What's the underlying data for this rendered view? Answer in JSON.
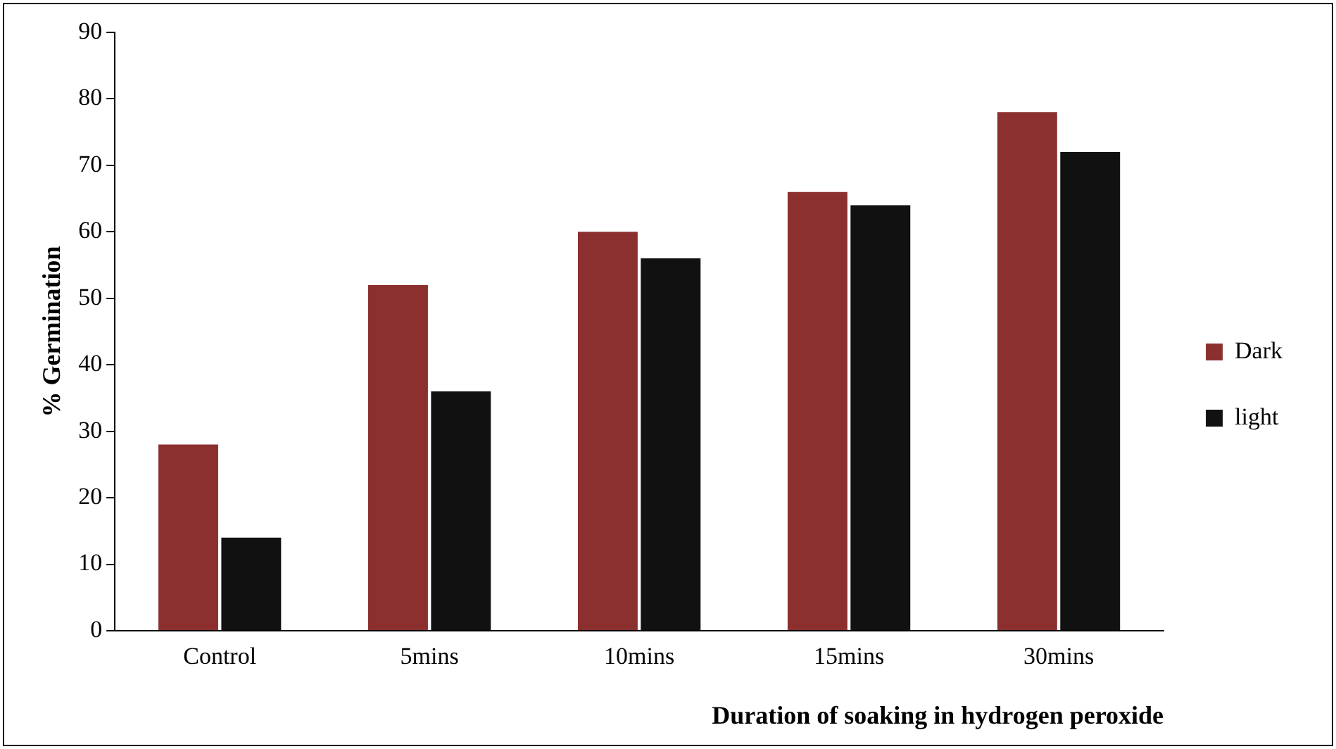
{
  "chart_data": {
    "type": "bar",
    "xlabel": "Duration of soaking in hydrogen peroxide",
    "ylabel": "% Germination",
    "categories": [
      "Control",
      "5mins",
      "10mins",
      "15mins",
      "30mins"
    ],
    "series": [
      {
        "name": "Dark",
        "color": "#8b2f2f",
        "values": [
          28,
          52,
          60,
          66,
          78
        ]
      },
      {
        "name": "light",
        "color": "#111111",
        "values": [
          14,
          36,
          56,
          64,
          72
        ]
      }
    ],
    "ylim": [
      0,
      90
    ],
    "yticks": [
      0,
      10,
      20,
      30,
      40,
      50,
      60,
      70,
      80,
      90
    ],
    "grid": false,
    "legend": "right"
  }
}
